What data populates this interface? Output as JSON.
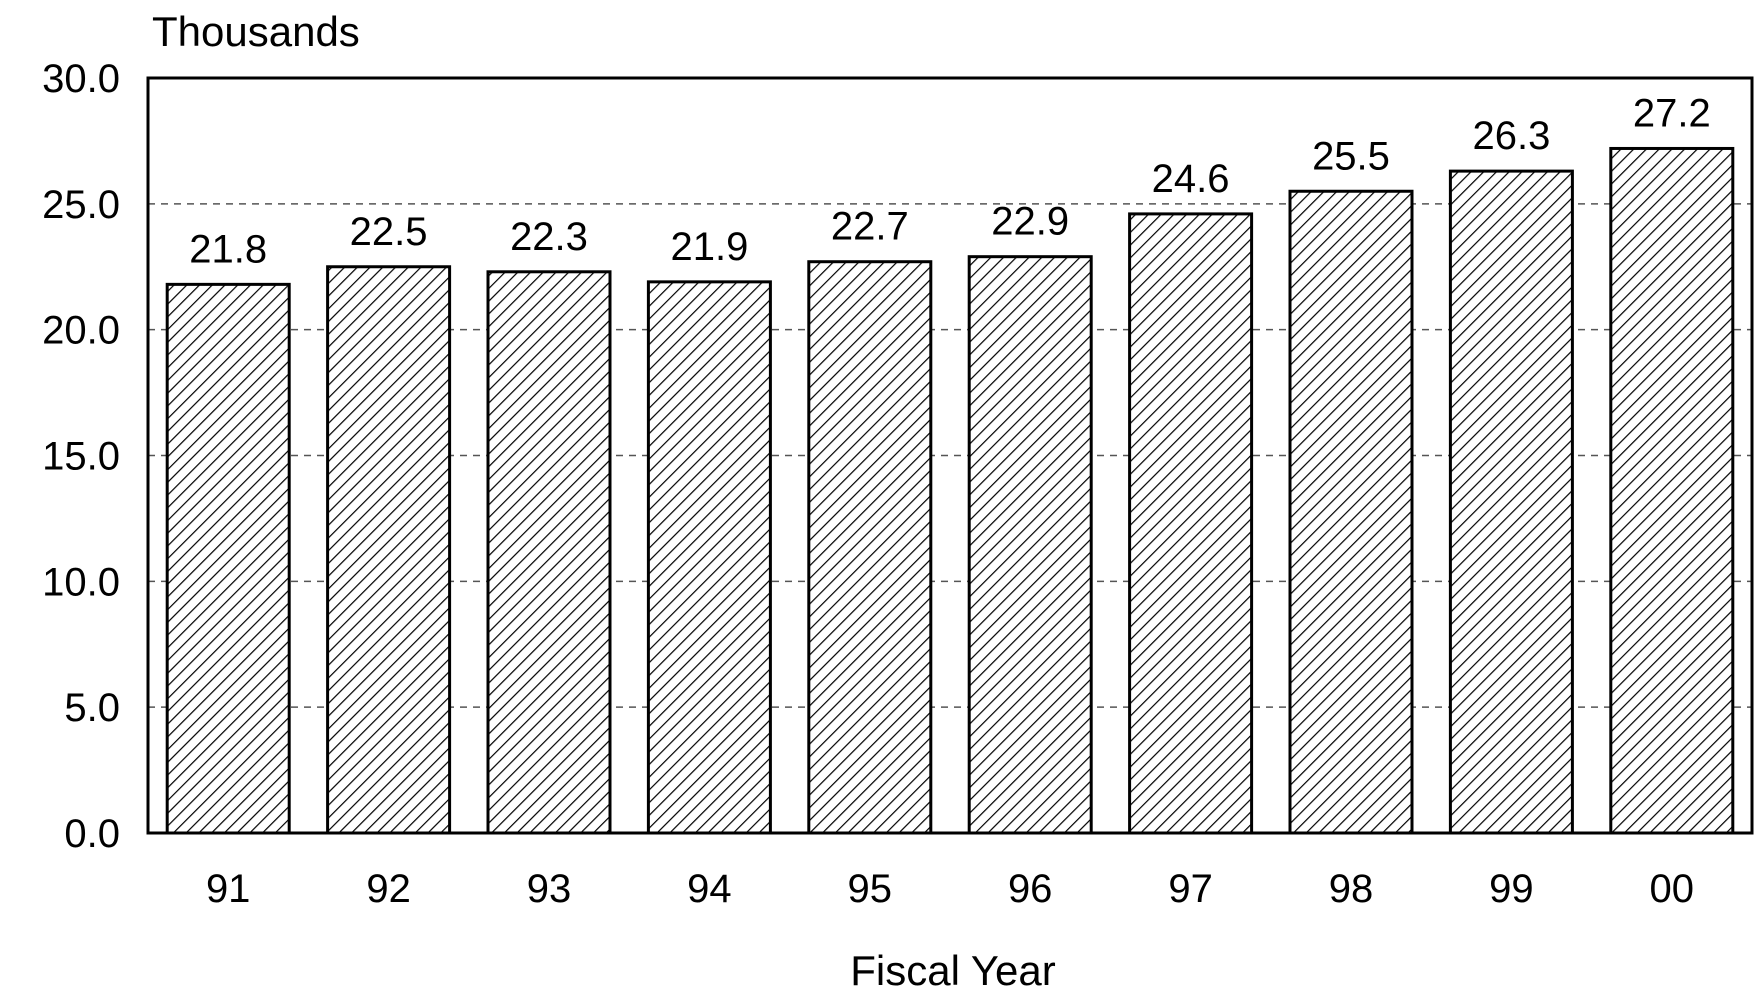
{
  "chart_data": {
    "type": "bar",
    "categories": [
      "91",
      "92",
      "93",
      "94",
      "95",
      "96",
      "97",
      "98",
      "99",
      "00"
    ],
    "values": [
      21.8,
      22.5,
      22.3,
      21.9,
      22.7,
      22.9,
      24.6,
      25.5,
      26.3,
      27.2
    ],
    "data_labels": [
      "21.8",
      "22.5",
      "22.3",
      "21.9",
      "22.7",
      "22.9",
      "24.6",
      "25.5",
      "26.3",
      "27.2"
    ],
    "title": "",
    "xlabel": "Fiscal Year",
    "ylabel": "Thousands",
    "ylim": [
      0,
      30
    ],
    "yticks": [
      0,
      5,
      10,
      15,
      20,
      25,
      30
    ],
    "ytick_labels": [
      "0.0",
      "5.0",
      "10.0",
      "15.0",
      "20.0",
      "25.0",
      "30.0"
    ],
    "grid": true,
    "grid_style": "dashed",
    "bar_fill": "diagonal-hatch",
    "colors": {
      "bar_stroke": "#000000",
      "hatch": "#000000",
      "background": "#ffffff",
      "grid": "#555555"
    }
  }
}
